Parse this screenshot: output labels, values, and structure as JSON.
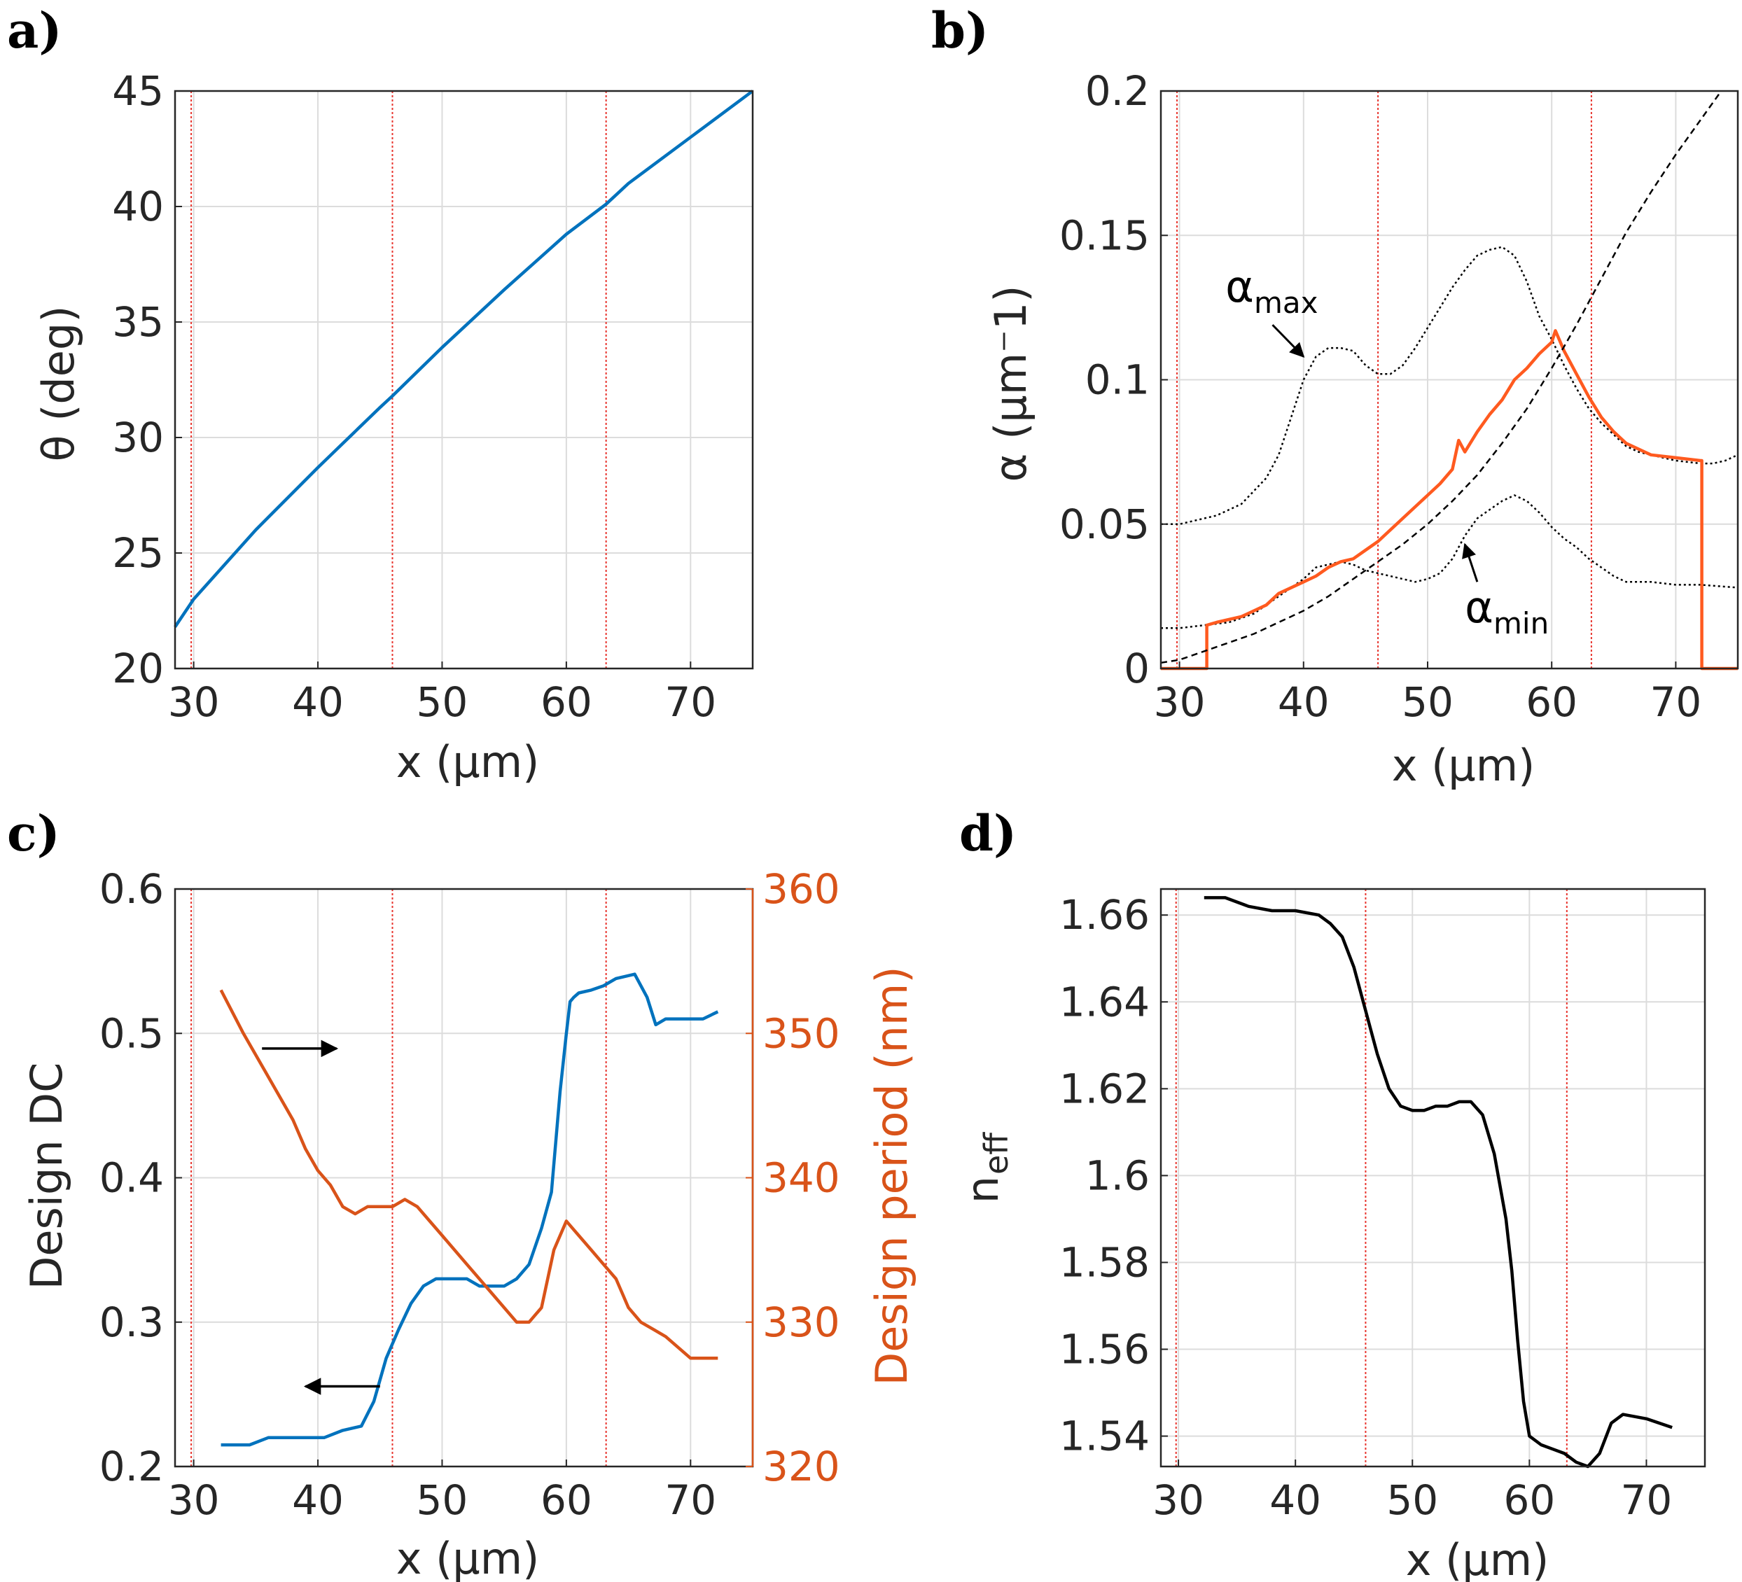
{
  "colors": {
    "blue": "#0072BD",
    "orange_b": "#FF5A1F",
    "orange_c": "#D95319",
    "black": "#000000",
    "red_line": "#E8352E",
    "grid": "#dcdcdc",
    "axis": "#262626"
  },
  "chart_data": [
    {
      "id": "a",
      "panel_label": "a)",
      "type": "line",
      "xlabel": "x (μm)",
      "ylabel": "θ (deg)",
      "xlim": [
        28.5,
        75
      ],
      "ylim": [
        20,
        45
      ],
      "xticks": [
        30,
        40,
        50,
        60,
        70
      ],
      "xtick_labels": [
        "30",
        "40",
        "50",
        "60",
        "70"
      ],
      "yticks": [
        20,
        25,
        30,
        35,
        40,
        45
      ],
      "ytick_labels": [
        "20",
        "25",
        "30",
        "35",
        "40",
        "45"
      ],
      "vlines": [
        29.8,
        46.0,
        63.2
      ],
      "series": [
        {
          "name": "theta",
          "color": "#0072BD",
          "style": "solid",
          "x": [
            28.5,
            30,
            35,
            40,
            45,
            46,
            50,
            55,
            60,
            63.2,
            65,
            70,
            75
          ],
          "y": [
            21.8,
            23.0,
            26.0,
            28.7,
            31.3,
            31.8,
            33.9,
            36.4,
            38.8,
            40.1,
            41.0,
            43.0,
            45.0
          ]
        }
      ]
    },
    {
      "id": "b",
      "panel_label": "b)",
      "type": "line",
      "xlabel": "x (μm)",
      "ylabel": "α (μm⁻1)",
      "xlim": [
        28.5,
        75
      ],
      "ylim": [
        0,
        0.2
      ],
      "xticks": [
        30,
        40,
        50,
        60,
        70
      ],
      "xtick_labels": [
        "30",
        "40",
        "50",
        "60",
        "70"
      ],
      "yticks": [
        0,
        0.05,
        0.1,
        0.15,
        0.2
      ],
      "ytick_labels": [
        "0",
        "0.05",
        "0.1",
        "0.15",
        "0.2"
      ],
      "vlines": [
        29.8,
        46.0,
        63.2
      ],
      "annotations": [
        {
          "base": "α",
          "sub": "max",
          "text_x": 33.7,
          "text_y": 0.127,
          "arrow_from": [
            37.5,
            0.119
          ],
          "arrow_to": [
            40.0,
            0.108
          ]
        },
        {
          "base": "α",
          "sub": "min",
          "text_x": 53.0,
          "text_y": 0.016,
          "arrow_from": [
            54.0,
            0.03
          ],
          "arrow_to": [
            53.0,
            0.043
          ]
        }
      ],
      "series": [
        {
          "name": "alpha_max",
          "color": "#000000",
          "style": "dotted",
          "x": [
            28.5,
            30,
            33,
            35,
            37,
            38,
            39,
            40,
            41,
            42,
            43,
            44,
            45,
            46,
            47,
            48,
            49,
            50,
            51,
            52,
            53,
            54,
            55,
            56,
            57,
            58,
            59,
            60,
            61,
            62,
            63,
            64,
            65,
            66,
            67,
            68,
            70,
            72,
            73,
            74,
            75
          ],
          "y": [
            0.05,
            0.05,
            0.053,
            0.057,
            0.066,
            0.074,
            0.087,
            0.1,
            0.108,
            0.111,
            0.111,
            0.11,
            0.105,
            0.102,
            0.102,
            0.105,
            0.111,
            0.118,
            0.125,
            0.132,
            0.138,
            0.143,
            0.145,
            0.146,
            0.143,
            0.134,
            0.122,
            0.114,
            0.105,
            0.097,
            0.09,
            0.085,
            0.081,
            0.077,
            0.075,
            0.074,
            0.072,
            0.071,
            0.071,
            0.072,
            0.074
          ]
        },
        {
          "name": "alpha_min",
          "color": "#000000",
          "style": "dotted",
          "x": [
            28.5,
            30,
            32,
            34,
            36,
            38,
            40,
            41,
            42,
            43,
            44,
            45,
            46,
            48,
            49,
            50,
            51,
            52,
            53,
            54,
            55,
            56,
            57,
            58,
            59,
            60,
            61,
            62,
            63,
            64,
            65,
            66,
            68,
            70,
            72,
            75
          ],
          "y": [
            0.014,
            0.014,
            0.015,
            0.016,
            0.019,
            0.025,
            0.031,
            0.035,
            0.036,
            0.037,
            0.036,
            0.034,
            0.033,
            0.031,
            0.03,
            0.031,
            0.033,
            0.038,
            0.046,
            0.052,
            0.055,
            0.058,
            0.06,
            0.058,
            0.054,
            0.049,
            0.045,
            0.042,
            0.038,
            0.035,
            0.032,
            0.03,
            0.03,
            0.029,
            0.029,
            0.028
          ]
        },
        {
          "name": "alpha_design",
          "color": "#FF5A1F",
          "style": "solid",
          "x": [
            28.5,
            32.2,
            32.2,
            33,
            35,
            37,
            38,
            40,
            41,
            42,
            43,
            44,
            45,
            46,
            47,
            48,
            50,
            51,
            52,
            52.5,
            53,
            54,
            55,
            56,
            57,
            58,
            59,
            60,
            60.3,
            61,
            62,
            63,
            64,
            65,
            66,
            67,
            68,
            70,
            72,
            72.1,
            72.1,
            75
          ],
          "y": [
            0,
            0,
            0.015,
            0.016,
            0.018,
            0.022,
            0.026,
            0.03,
            0.032,
            0.035,
            0.037,
            0.038,
            0.041,
            0.044,
            0.048,
            0.052,
            0.06,
            0.064,
            0.069,
            0.079,
            0.075,
            0.082,
            0.088,
            0.093,
            0.1,
            0.104,
            0.109,
            0.113,
            0.117,
            0.11,
            0.102,
            0.094,
            0.087,
            0.082,
            0.078,
            0.076,
            0.074,
            0.073,
            0.072,
            0.072,
            0,
            0
          ]
        },
        {
          "name": "reference",
          "color": "#000000",
          "style": "dashed",
          "x": [
            28.5,
            30,
            32,
            34,
            36,
            38,
            40,
            42,
            44,
            46,
            48,
            50,
            52,
            54,
            56,
            58,
            60,
            62,
            64,
            66,
            68,
            70,
            72,
            73.5
          ],
          "y": [
            0.002,
            0.003,
            0.006,
            0.009,
            0.012,
            0.016,
            0.02,
            0.025,
            0.031,
            0.037,
            0.043,
            0.05,
            0.058,
            0.067,
            0.078,
            0.09,
            0.104,
            0.119,
            0.135,
            0.151,
            0.165,
            0.178,
            0.19,
            0.199
          ]
        }
      ]
    },
    {
      "id": "c",
      "panel_label": "c)",
      "type": "line",
      "xlabel": "x (μm)",
      "ylabel": "Design DC",
      "ylabel_right": "Design period (nm)",
      "xlim": [
        28.5,
        75
      ],
      "ylim": [
        0.2,
        0.6
      ],
      "ylim_right": [
        320,
        360
      ],
      "xticks": [
        30,
        40,
        50,
        60,
        70
      ],
      "xtick_labels": [
        "30",
        "40",
        "50",
        "60",
        "70"
      ],
      "yticks": [
        0.2,
        0.3,
        0.4,
        0.5,
        0.6
      ],
      "ytick_labels": [
        "0.2",
        "0.3",
        "0.4",
        "0.5",
        "0.6"
      ],
      "yticks_right": [
        320,
        330,
        340,
        350,
        360
      ],
      "ytick_labels_right": [
        "320",
        "330",
        "340",
        "350",
        "360"
      ],
      "vlines": [
        29.8,
        46.0,
        63.2
      ],
      "arrows": [
        {
          "direction": "right",
          "from": [
            35.5,
            0.4895
          ],
          "to": [
            41.5,
            0.4895
          ]
        },
        {
          "direction": "left",
          "from": [
            45.0,
            0.2555
          ],
          "to": [
            39.0,
            0.2555
          ]
        }
      ],
      "series": [
        {
          "name": "design_dc",
          "axis": "left",
          "color": "#0072BD",
          "style": "solid",
          "x": [
            32.2,
            34.5,
            36,
            40.5,
            42,
            43.5,
            44.5,
            45.5,
            46.5,
            47.5,
            48.5,
            49.5,
            50.5,
            52,
            53,
            54,
            55,
            56,
            57,
            58,
            58.8,
            59.5,
            60,
            60.3,
            60.6,
            61,
            62,
            63,
            64,
            65.5,
            66.5,
            67.2,
            68,
            69,
            70,
            71,
            72.2
          ],
          "y": [
            0.215,
            0.215,
            0.22,
            0.22,
            0.225,
            0.228,
            0.245,
            0.275,
            0.295,
            0.313,
            0.325,
            0.33,
            0.33,
            0.33,
            0.325,
            0.325,
            0.325,
            0.33,
            0.34,
            0.365,
            0.39,
            0.46,
            0.5,
            0.522,
            0.525,
            0.528,
            0.53,
            0.533,
            0.538,
            0.541,
            0.525,
            0.506,
            0.51,
            0.51,
            0.51,
            0.51,
            0.515
          ]
        },
        {
          "name": "design_period",
          "axis": "right",
          "color": "#D95319",
          "style": "solid",
          "x": [
            32.2,
            34,
            36,
            38,
            39,
            40,
            41,
            42,
            43,
            44,
            45,
            46,
            47,
            48,
            49,
            50,
            52,
            54,
            56,
            57,
            58,
            59,
            60,
            60.5,
            61,
            62,
            63,
            64,
            65,
            66,
            67,
            68,
            70,
            72.2
          ],
          "y": [
            353.0,
            350.0,
            347.0,
            344.0,
            342.0,
            340.5,
            339.5,
            338.0,
            337.5,
            338.0,
            338.0,
            338.0,
            338.5,
            338.0,
            337.0,
            336.0,
            334.0,
            332.0,
            330.0,
            330.0,
            331.0,
            335.0,
            337.0,
            336.5,
            336.0,
            335.0,
            334.0,
            333.0,
            331.0,
            330.0,
            329.5,
            329.0,
            327.5,
            327.5
          ]
        }
      ]
    },
    {
      "id": "d",
      "panel_label": "d)",
      "type": "line",
      "xlabel": "x (μm)",
      "ylabel_base": "n",
      "ylabel_sub": "eff",
      "xlim": [
        28.5,
        75
      ],
      "ylim": [
        1.533,
        1.666
      ],
      "xticks": [
        30,
        40,
        50,
        60,
        70
      ],
      "xtick_labels": [
        "30",
        "40",
        "50",
        "60",
        "70"
      ],
      "yticks": [
        1.54,
        1.56,
        1.58,
        1.6,
        1.62,
        1.64,
        1.66
      ],
      "ytick_labels": [
        "1.54",
        "1.56",
        "1.58",
        "1.6",
        "1.62",
        "1.64",
        "1.66"
      ],
      "vlines": [
        29.8,
        46.0,
        63.2
      ],
      "series": [
        {
          "name": "n_eff",
          "color": "#000000",
          "style": "solid",
          "x": [
            32.2,
            34,
            36,
            38,
            40,
            42,
            43,
            44,
            45,
            46,
            47,
            48,
            49,
            50,
            51,
            52,
            53,
            54,
            55,
            56,
            57,
            58,
            58.5,
            59,
            59.5,
            60,
            61,
            62,
            63,
            64,
            65,
            66,
            67,
            68,
            70,
            72.2
          ],
          "y": [
            1.664,
            1.664,
            1.662,
            1.661,
            1.661,
            1.66,
            1.658,
            1.655,
            1.648,
            1.638,
            1.628,
            1.62,
            1.616,
            1.615,
            1.615,
            1.616,
            1.616,
            1.617,
            1.617,
            1.614,
            1.605,
            1.59,
            1.578,
            1.562,
            1.548,
            1.54,
            1.538,
            1.537,
            1.536,
            1.534,
            1.533,
            1.536,
            1.543,
            1.545,
            1.544,
            1.542
          ]
        }
      ]
    }
  ]
}
